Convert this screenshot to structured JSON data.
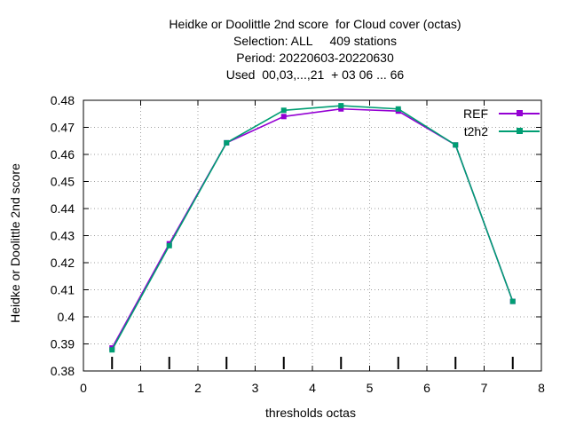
{
  "title_lines": [
    "Heidke or Doolittle 2nd score  for Cloud cover (octas)",
    "Selection: ALL     409 stations",
    "Period: 20220603-20220630",
    "Used  00,03,...,21  + 03 06 ... 66"
  ],
  "chart_data": {
    "type": "line",
    "xlabel": "thresholds octas",
    "ylabel": "Heidke or Doolittle 2nd score",
    "xlim": [
      0,
      8
    ],
    "ylim": [
      0.38,
      0.48
    ],
    "x_ticks": [
      "0",
      "1",
      "2",
      "3",
      "4",
      "5",
      "6",
      "7",
      "8"
    ],
    "y_ticks": [
      "0.38",
      "0.39",
      "0.4",
      "0.41",
      "0.42",
      "0.43",
      "0.44",
      "0.45",
      "0.46",
      "0.47",
      "0.48"
    ],
    "grid": true,
    "legend_position": "top-right",
    "x": [
      0.5,
      1.5,
      2.5,
      3.5,
      4.5,
      5.5,
      6.5,
      7.5
    ],
    "series": [
      {
        "name": "REF",
        "color": "#9400d3",
        "values": [
          0.3885,
          0.427,
          0.4643,
          0.474,
          0.4768,
          0.476,
          0.4635,
          0.4057
        ]
      },
      {
        "name": "t2h2",
        "color": "#009e73",
        "values": [
          0.3878,
          0.4263,
          0.4643,
          0.4763,
          0.478,
          0.4768,
          0.4635,
          0.4057
        ]
      }
    ]
  }
}
